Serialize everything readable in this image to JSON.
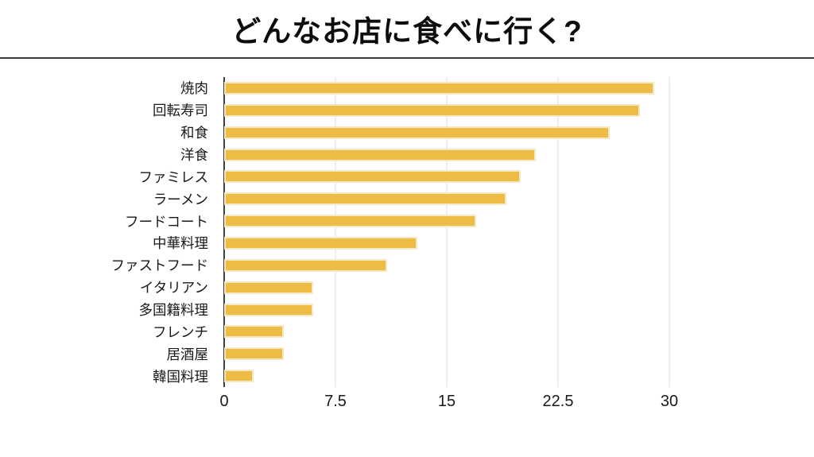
{
  "header": {
    "title": "どんなお店に食べに行く?"
  },
  "chart_data": {
    "type": "bar",
    "orientation": "horizontal",
    "title": "どんなお店に食べに行く?",
    "xlabel": "",
    "ylabel": "",
    "categories": [
      "焼肉",
      "回転寿司",
      "和食",
      "洋食",
      "ファミレス",
      "ラーメン",
      "フードコート",
      "中華料理",
      "ファストフード",
      "イタリアン",
      "多国籍料理",
      "フレンチ",
      "居酒屋",
      "韓国料理"
    ],
    "values": [
      29,
      28,
      26,
      21,
      20,
      19,
      17,
      13,
      11,
      6,
      6,
      4,
      4,
      2
    ],
    "xlim": [
      0,
      30
    ],
    "xticks": [
      0,
      7.5,
      15,
      22.5,
      30
    ],
    "xtick_labels": [
      "0",
      "7.5",
      "15",
      "22.5",
      "30"
    ],
    "grid": true,
    "legend": false,
    "colors": {
      "bar_fill": "#edbc45",
      "bar_border": "#f6e8c3",
      "gridline": "#dcdcdc",
      "axis_line": "#3f3f3f",
      "title_divider": "#3a3a3a",
      "text": "#1a1a1a"
    }
  }
}
